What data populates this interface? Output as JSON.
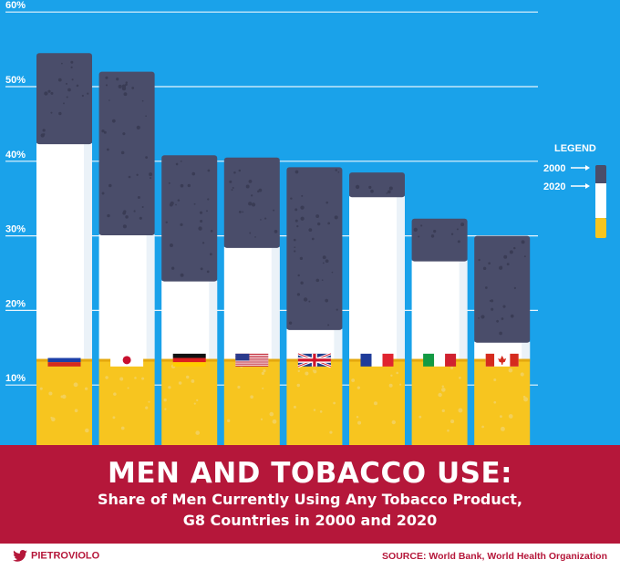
{
  "chart_data": {
    "type": "bar",
    "title": "MEN AND TOBACCO USE:",
    "subtitle_lines": [
      "Share of Men Currently Using Any Tobacco Product,",
      "G8 Countries in 2000 and 2020"
    ],
    "categories": [
      "Russia",
      "Japan",
      "Germany",
      "USA",
      "UK",
      "France",
      "Italy",
      "Canada"
    ],
    "series": [
      {
        "name": "2000",
        "values": [
          54.5,
          52.0,
          40.8,
          40.5,
          39.2,
          38.5,
          32.3,
          30.0
        ]
      },
      {
        "name": "2020",
        "values": [
          42.4,
          30.2,
          24.0,
          28.5,
          17.5,
          35.3,
          26.7,
          15.8
        ]
      }
    ],
    "ylim": [
      0,
      60
    ],
    "yticks": [
      10,
      20,
      30,
      40,
      50,
      60
    ],
    "ytick_labels": [
      "10%",
      "20%",
      "30%",
      "40%",
      "50%",
      "60%"
    ],
    "filter_level": 13.5,
    "grid": true,
    "legend": {
      "title": "LEGEND",
      "placement": "right",
      "entries": [
        "2000",
        "2020"
      ]
    },
    "colors": {
      "background": "#1aa2ea",
      "ash": "#4a4d6a",
      "paper": "#ffffff",
      "filter": "#f7c51f",
      "banner": "#b5173a"
    }
  },
  "footer": {
    "author": "PIETROVIOLO",
    "source": "SOURCE: World Bank, World Health Organization"
  }
}
